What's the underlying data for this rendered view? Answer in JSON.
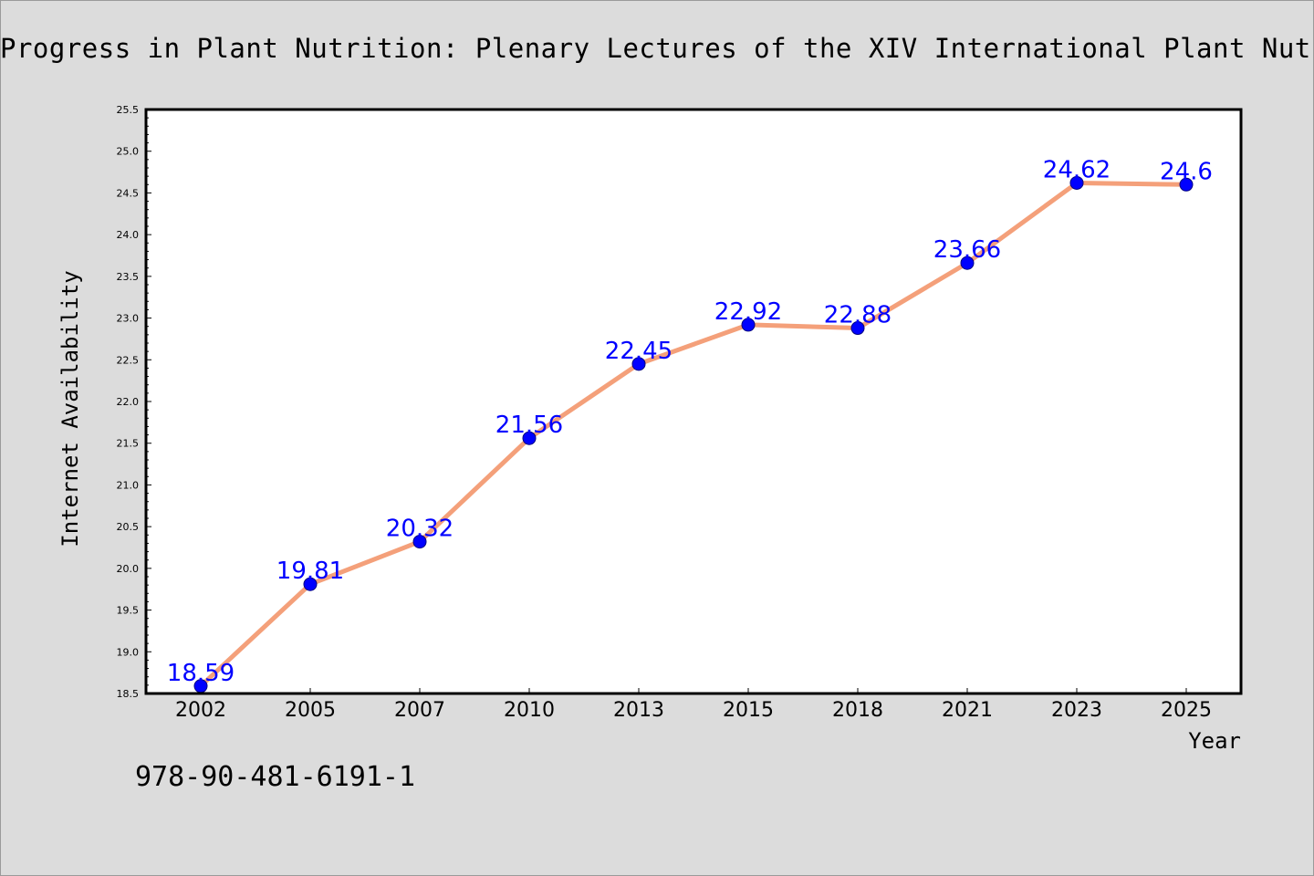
{
  "page": {
    "isbn": "978-90-481-6191-1"
  },
  "chart_data": {
    "type": "line",
    "title": "Progress in Plant Nutrition: Plenary Lectures of the XIV International Plant Nutrition Colloquium",
    "xlabel": "Year",
    "ylabel": "Internet Availability",
    "categories": [
      "2002",
      "2005",
      "2007",
      "2010",
      "2013",
      "2015",
      "2018",
      "2021",
      "2023",
      "2025"
    ],
    "series": [
      {
        "values": [
          18.59,
          19.81,
          20.32,
          21.56,
          22.45,
          22.92,
          22.88,
          23.66,
          24.62,
          24.6
        ],
        "data_labels": [
          "18.59",
          "19.81",
          "20.32",
          "21.56",
          "22.45",
          "22.92",
          "22.88",
          "23.66",
          "24.62",
          "24.6"
        ]
      }
    ],
    "ylim": [
      18.5,
      25.5
    ],
    "yticks": [
      "18.5",
      "19.0",
      "19.5",
      "20.0",
      "20.5",
      "21.0",
      "21.5",
      "22.0",
      "22.5",
      "23.0",
      "23.5",
      "24.0",
      "24.5",
      "25.0",
      "25.5"
    ],
    "grid": false,
    "legend": "none",
    "colors": {
      "line": "#f4a07a",
      "marker": "#0000ff",
      "marker_edge": "#000080",
      "data_label": "#0000ff",
      "background": "#dcdcdc",
      "plot_background": "#ffffff"
    }
  }
}
